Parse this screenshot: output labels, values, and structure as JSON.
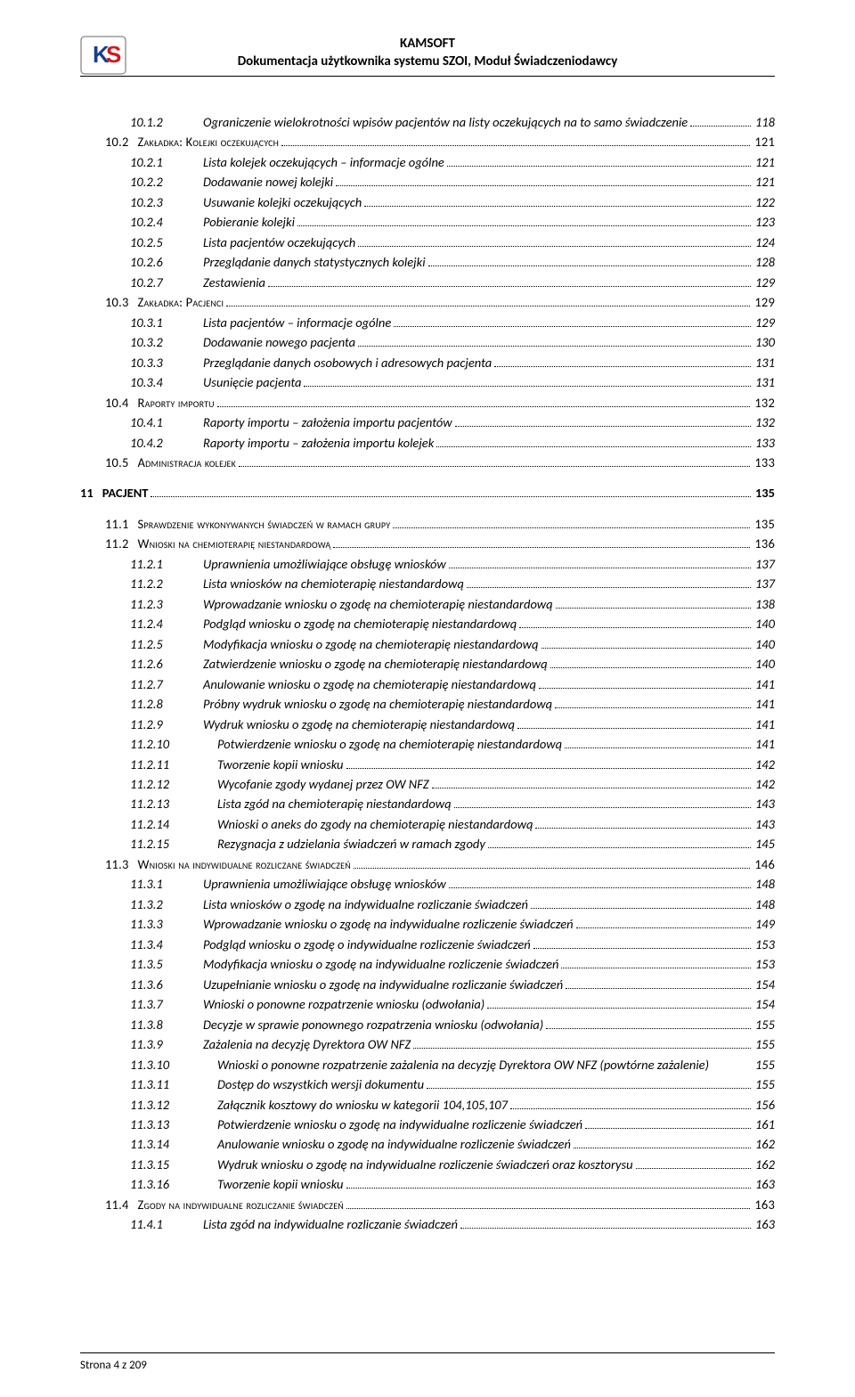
{
  "header": {
    "title_main": "KAMSOFT",
    "title_sub": "Dokumentacja użytkownika systemu SZOI, Moduł Świadczeniodawcy"
  },
  "logo": {
    "letter1": "K",
    "letter2": "S",
    "color_k": "#1a3e8f",
    "color_s": "#c81e1e",
    "bg": "#ffffff",
    "border": "#555555"
  },
  "footer": {
    "text": "Strona 4 z 209"
  },
  "toc": [
    {
      "lvl": 2,
      "style": "italic",
      "num": "10.1.2",
      "label": "Ograniczenie wielokrotności wpisów pacjentów na listy oczekujących na to samo świadczenie",
      "page": "118",
      "trailing": ".... "
    },
    {
      "lvl": 1,
      "style": "smallcaps",
      "num": "10.2",
      "label": "Zakładka: Kolejki oczekujących",
      "page": "121"
    },
    {
      "lvl": 2,
      "style": "italic",
      "num": "10.2.1",
      "label": "Lista kolejek oczekujących – informacje ogólne",
      "page": "121"
    },
    {
      "lvl": 2,
      "style": "italic",
      "num": "10.2.2",
      "label": "Dodawanie nowej kolejki",
      "page": "121"
    },
    {
      "lvl": 2,
      "style": "italic",
      "num": "10.2.3",
      "label": "Usuwanie kolejki oczekujących",
      "page": "122"
    },
    {
      "lvl": 2,
      "style": "italic",
      "num": "10.2.4",
      "label": "Pobieranie kolejki",
      "page": "123"
    },
    {
      "lvl": 2,
      "style": "italic",
      "num": "10.2.5",
      "label": "Lista pacjentów oczekujących",
      "page": "124"
    },
    {
      "lvl": 2,
      "style": "italic",
      "num": "10.2.6",
      "label": "Przeglądanie danych statystycznych kolejki",
      "page": "128"
    },
    {
      "lvl": 2,
      "style": "italic",
      "num": "10.2.7",
      "label": "Zestawienia",
      "page": "129"
    },
    {
      "lvl": 1,
      "style": "smallcaps",
      "num": "10.3",
      "label": "Zakładka: Pacjenci",
      "page": "129"
    },
    {
      "lvl": 2,
      "style": "italic",
      "num": "10.3.1",
      "label": "Lista pacjentów – informacje ogólne",
      "page": "129"
    },
    {
      "lvl": 2,
      "style": "italic",
      "num": "10.3.2",
      "label": "Dodawanie nowego pacjenta",
      "page": "130"
    },
    {
      "lvl": 2,
      "style": "italic",
      "num": "10.3.3",
      "label": "Przeglądanie danych osobowych i adresowych pacjenta",
      "page": "131"
    },
    {
      "lvl": 2,
      "style": "italic",
      "num": "10.3.4",
      "label": "Usunięcie pacjenta",
      "page": "131"
    },
    {
      "lvl": 1,
      "style": "smallcaps",
      "num": "10.4",
      "label": "Raporty importu",
      "page": "132"
    },
    {
      "lvl": 2,
      "style": "italic",
      "num": "10.4.1",
      "label": "Raporty importu – założenia importu pacjentów",
      "page": "132"
    },
    {
      "lvl": 2,
      "style": "italic",
      "num": "10.4.2",
      "label": "Raporty importu – założenia importu kolejek",
      "page": "133"
    },
    {
      "lvl": 1,
      "style": "smallcaps",
      "num": "10.5",
      "label": "Administracja kolejek",
      "page": "133"
    },
    {
      "lvl": 0,
      "style": "chapter",
      "num": "11",
      "label": "PACJENT",
      "page": "135"
    },
    {
      "lvl": 1,
      "style": "smallcaps",
      "num": "11.1",
      "label": "Sprawdzenie wykonywanych świadczeń w ramach grupy",
      "page": "135"
    },
    {
      "lvl": 1,
      "style": "smallcaps",
      "num": "11.2",
      "label": "Wnioski na chemioterapię niestandardową",
      "page": "136"
    },
    {
      "lvl": 2,
      "style": "italic",
      "num": "11.2.1",
      "label": "Uprawnienia umożliwiające obsługę wniosków",
      "page": "137"
    },
    {
      "lvl": 2,
      "style": "italic",
      "num": "11.2.2",
      "label": "Lista wniosków na chemioterapię niestandardową",
      "page": "137"
    },
    {
      "lvl": 2,
      "style": "italic",
      "num": "11.2.3",
      "label": "Wprowadzanie wniosku o zgodę na chemioterapię niestandardową",
      "page": "138"
    },
    {
      "lvl": 2,
      "style": "italic",
      "num": "11.2.4",
      "label": "Podgląd wniosku o zgodę na chemioterapię niestandardową",
      "page": "140"
    },
    {
      "lvl": 2,
      "style": "italic",
      "num": "11.2.5",
      "label": "Modyfikacja wniosku o zgodę na chemioterapię niestandardową",
      "page": "140"
    },
    {
      "lvl": 2,
      "style": "italic",
      "num": "11.2.6",
      "label": "Zatwierdzenie wniosku o zgodę na chemioterapię niestandardową",
      "page": "140"
    },
    {
      "lvl": 2,
      "style": "italic",
      "num": "11.2.7",
      "label": "Anulowanie wniosku o zgodę na chemioterapię niestandardową",
      "page": "141"
    },
    {
      "lvl": 2,
      "style": "italic",
      "num": "11.2.8",
      "label": "Próbny wydruk wniosku o zgodę na chemioterapię niestandardową",
      "page": "141"
    },
    {
      "lvl": 2,
      "style": "italic",
      "num": "11.2.9",
      "label": "Wydruk wniosku o zgodę na chemioterapię niestandardową",
      "page": "141"
    },
    {
      "lvl": 2,
      "style": "italic",
      "num": "11.2.10",
      "label": "Potwierdzenie wniosku o zgodę na chemioterapię niestandardową",
      "page": "141",
      "wide": true
    },
    {
      "lvl": 2,
      "style": "italic",
      "num": "11.2.11",
      "label": "Tworzenie kopii wniosku",
      "page": "142",
      "wide": true
    },
    {
      "lvl": 2,
      "style": "italic",
      "num": "11.2.12",
      "label": "Wycofanie zgody wydanej przez OW NFZ",
      "page": "142",
      "wide": true
    },
    {
      "lvl": 2,
      "style": "italic",
      "num": "11.2.13",
      "label": "Lista zgód na chemioterapię niestandardową",
      "page": "143",
      "wide": true
    },
    {
      "lvl": 2,
      "style": "italic",
      "num": "11.2.14",
      "label": "Wnioski o aneks do zgody na chemioterapię niestandardową",
      "page": "143",
      "wide": true
    },
    {
      "lvl": 2,
      "style": "italic",
      "num": "11.2.15",
      "label": "Rezygnacja z udzielania świadczeń w ramach zgody",
      "page": "145",
      "wide": true
    },
    {
      "lvl": 1,
      "style": "smallcaps",
      "num": "11.3",
      "label": "Wnioski na indywidualne rozliczane świadczeń",
      "page": "146"
    },
    {
      "lvl": 2,
      "style": "italic",
      "num": "11.3.1",
      "label": "Uprawnienia umożliwiające obsługę wniosków",
      "page": "148"
    },
    {
      "lvl": 2,
      "style": "italic",
      "num": "11.3.2",
      "label": "Lista wniosków o zgodę na indywidualne rozliczanie świadczeń",
      "page": "148"
    },
    {
      "lvl": 2,
      "style": "italic",
      "num": "11.3.3",
      "label": "Wprowadzanie wniosku o zgodę na indywidualne rozliczenie świadczeń",
      "page": "149"
    },
    {
      "lvl": 2,
      "style": "italic",
      "num": "11.3.4",
      "label": "Podgląd wniosku o zgodę o indywidualne rozliczenie świadczeń",
      "page": "153"
    },
    {
      "lvl": 2,
      "style": "italic",
      "num": "11.3.5",
      "label": "Modyfikacja wniosku o zgodę na indywidualne rozliczenie świadczeń",
      "page": "153"
    },
    {
      "lvl": 2,
      "style": "italic",
      "num": "11.3.6",
      "label": "Uzupełnianie wniosku o zgodę na indywidualne rozliczanie świadczeń",
      "page": "154"
    },
    {
      "lvl": 2,
      "style": "italic",
      "num": "11.3.7",
      "label": "Wnioski o ponowne rozpatrzenie wniosku (odwołania)",
      "page": "154"
    },
    {
      "lvl": 2,
      "style": "italic",
      "num": "11.3.8",
      "label": "Decyzje w sprawie ponownego rozpatrzenia wniosku (odwołania)",
      "page": "155"
    },
    {
      "lvl": 2,
      "style": "italic",
      "num": "11.3.9",
      "label": "Zażalenia na decyzję Dyrektora OW NFZ",
      "page": "155"
    },
    {
      "lvl": 2,
      "style": "italic",
      "num": "11.3.10",
      "label": "Wnioski o ponowne rozpatrzenie zażalenia na decyzję Dyrektora OW NFZ (powtórne zażalenie)",
      "page": "155",
      "wide": true,
      "nodots": true
    },
    {
      "lvl": 2,
      "style": "italic",
      "num": "11.3.11",
      "label": "Dostęp do wszystkich wersji dokumentu",
      "page": "155",
      "wide": true
    },
    {
      "lvl": 2,
      "style": "italic",
      "num": "11.3.12",
      "label": "Załącznik kosztowy do wniosku w kategorii 104,105,107",
      "page": "156",
      "wide": true
    },
    {
      "lvl": 2,
      "style": "italic",
      "num": "11.3.13",
      "label": "Potwierdzenie wniosku o zgodę na indywidualne rozliczenie świadczeń",
      "page": "161",
      "wide": true
    },
    {
      "lvl": 2,
      "style": "italic",
      "num": "11.3.14",
      "label": "Anulowanie wniosku o zgodę na indywidualne rozliczenie świadczeń",
      "page": "162",
      "wide": true
    },
    {
      "lvl": 2,
      "style": "italic",
      "num": "11.3.15",
      "label": "Wydruk wniosku o zgodę na indywidualne rozliczenie świadczeń oraz kosztorysu",
      "page": "162",
      "wide": true
    },
    {
      "lvl": 2,
      "style": "italic",
      "num": "11.3.16",
      "label": "Tworzenie kopii wniosku",
      "page": "163",
      "wide": true
    },
    {
      "lvl": 1,
      "style": "smallcaps",
      "num": "11.4",
      "label": "Zgody na indywidualne rozliczanie świadczeń",
      "page": "163"
    },
    {
      "lvl": 2,
      "style": "italic",
      "num": "11.4.1",
      "label": "Lista zgód na indywidualne rozliczanie świadczeń",
      "page": "163"
    }
  ],
  "colors": {
    "text": "#000000",
    "background": "#ffffff",
    "rule": "#000000"
  },
  "typography": {
    "body_family": "Calibri",
    "body_size_pt": 11,
    "title_size_pt": 11,
    "title_weight": "bold"
  }
}
